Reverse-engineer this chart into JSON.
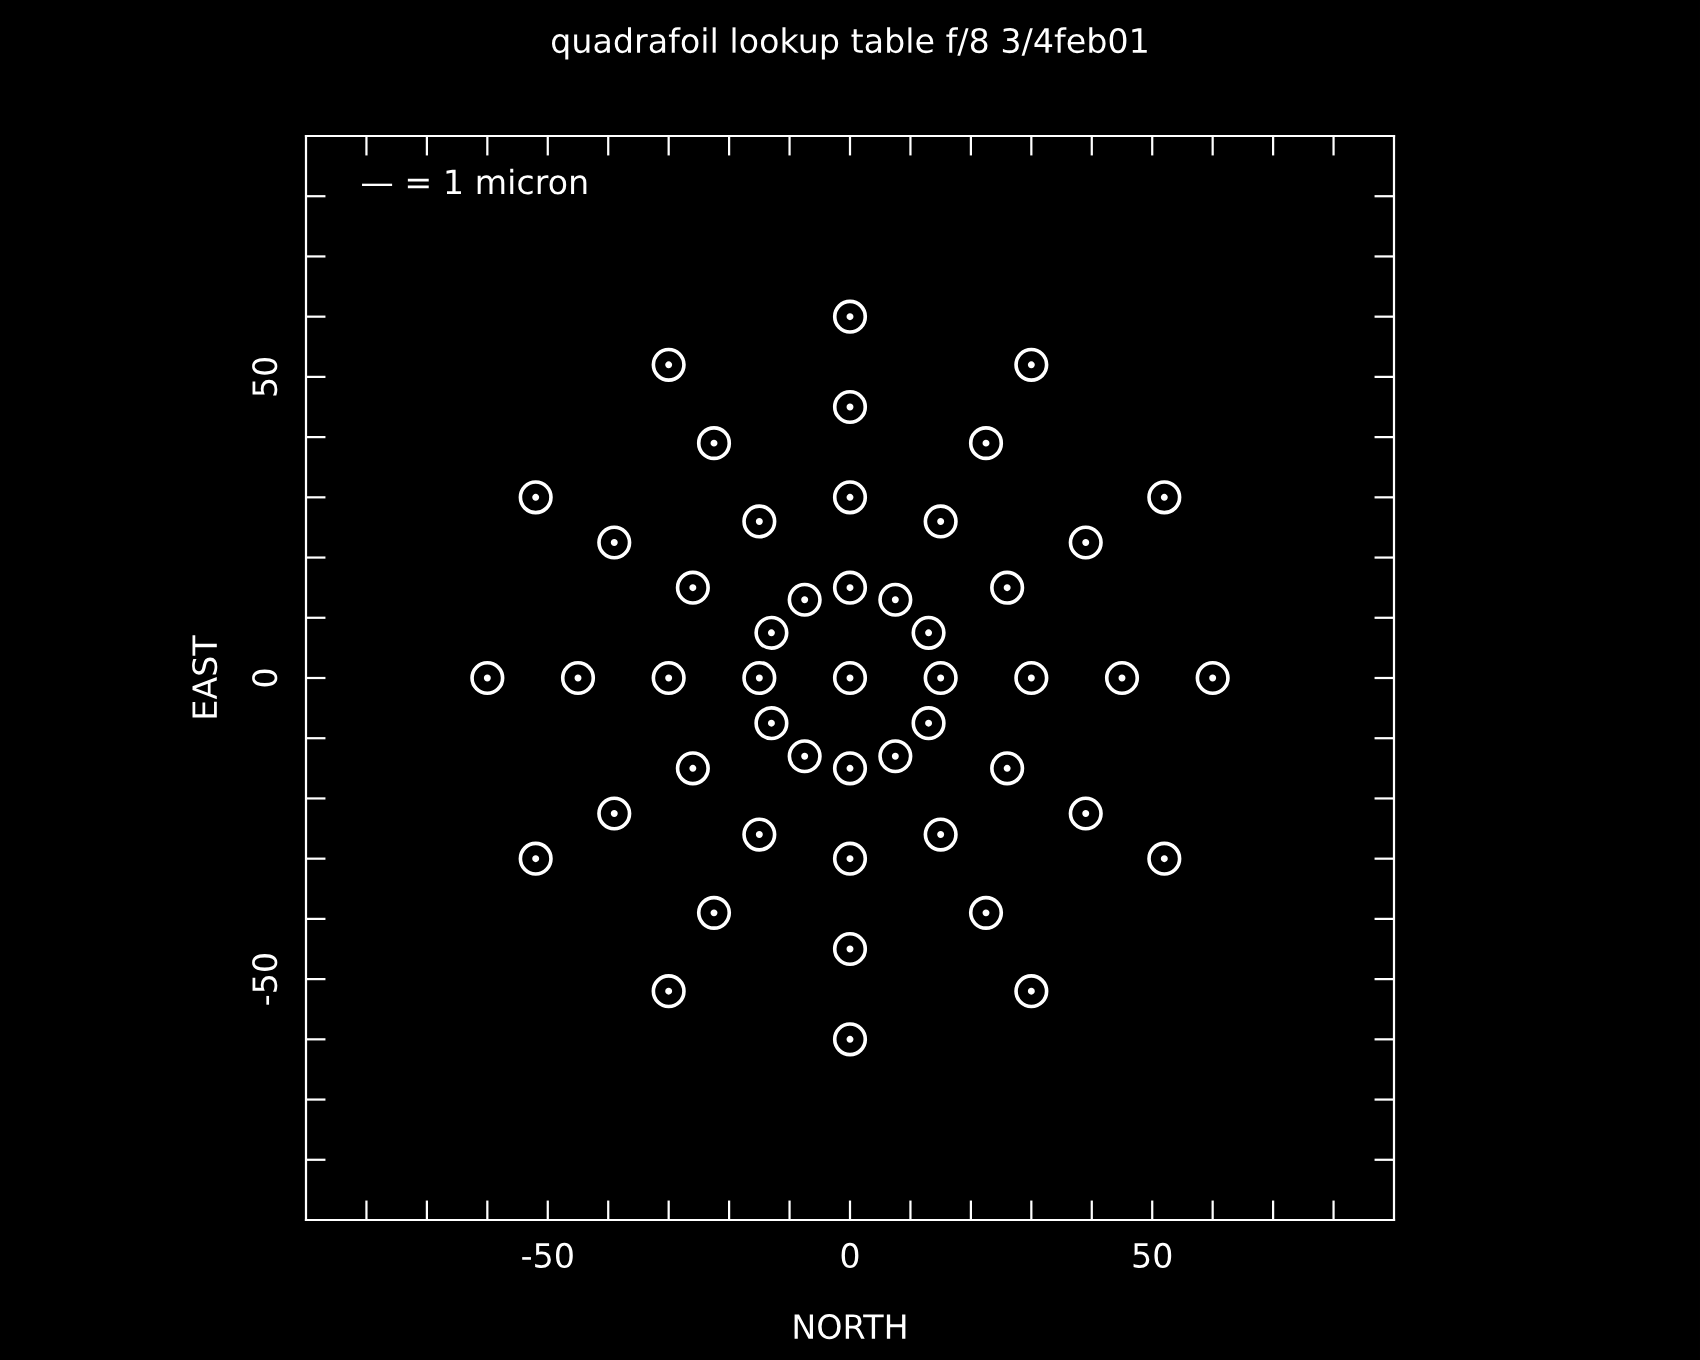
{
  "chart_data": {
    "type": "scatter",
    "title": "quadrafoil lookup table f/8 3/4feb01",
    "xlabel": "NORTH",
    "ylabel": "EAST",
    "marker": "circle",
    "grid": false,
    "annotations": [
      "— = 1 micron"
    ],
    "x": [
      0,
      0,
      7.5,
      13,
      15,
      13,
      7.5,
      0,
      -7.5,
      -13,
      -15,
      -13,
      -7.5,
      0,
      15,
      26,
      30,
      26,
      15,
      0,
      -15,
      -26,
      -30,
      -26,
      -15,
      0,
      22.5,
      39,
      45,
      39,
      22.5,
      0,
      -22.5,
      -39,
      -45,
      -39,
      -22.5,
      0,
      30,
      52,
      60,
      52,
      30,
      0,
      -30,
      -52,
      -60,
      -52,
      -30
    ],
    "series": [
      {
        "color": "#ffffff",
        "values": [
          0,
          15,
          13,
          7.5,
          0,
          -7.5,
          -13,
          -15,
          -13,
          -7.5,
          0,
          7.5,
          13,
          30,
          26,
          15,
          0,
          -15,
          -26,
          -30,
          -26,
          -15,
          0,
          15,
          26,
          45,
          39,
          22.5,
          0,
          -22.5,
          -39,
          -45,
          -39,
          -22.5,
          0,
          22.5,
          39,
          60,
          52,
          30,
          0,
          -30,
          -52,
          -60,
          -52,
          -30,
          0,
          30,
          52
        ]
      }
    ],
    "xlim": [
      -90,
      90
    ],
    "ylim": [
      -90,
      90
    ],
    "xticks": [
      {
        "value": -80,
        "label": null
      },
      {
        "value": -70,
        "label": null
      },
      {
        "value": -60,
        "label": null
      },
      -50,
      {
        "value": -40,
        "label": null
      },
      {
        "value": -30,
        "label": null
      },
      {
        "value": -20,
        "label": null
      },
      {
        "value": -10,
        "label": null
      },
      0,
      {
        "value": 10,
        "label": null
      },
      {
        "value": 20,
        "label": null
      },
      {
        "value": 30,
        "label": null
      },
      {
        "value": 40,
        "label": null
      },
      50,
      {
        "value": 60,
        "label": null
      },
      {
        "value": 70,
        "label": null
      },
      {
        "value": 80,
        "label": null
      }
    ],
    "yticks": [
      {
        "value": -80,
        "label": null
      },
      {
        "value": -70,
        "label": null
      },
      {
        "value": -60,
        "label": null
      },
      -50,
      {
        "value": -40,
        "label": null
      },
      {
        "value": -30,
        "label": null
      },
      {
        "value": -20,
        "label": null
      },
      {
        "value": -10,
        "label": null
      },
      0,
      {
        "value": 10,
        "label": null
      },
      {
        "value": 20,
        "label": null
      },
      {
        "value": 30,
        "label": null
      },
      {
        "value": 40,
        "label": null
      },
      50,
      {
        "value": 60,
        "label": null
      },
      {
        "value": 70,
        "label": null
      },
      {
        "value": 80,
        "label": null
      }
    ]
  }
}
